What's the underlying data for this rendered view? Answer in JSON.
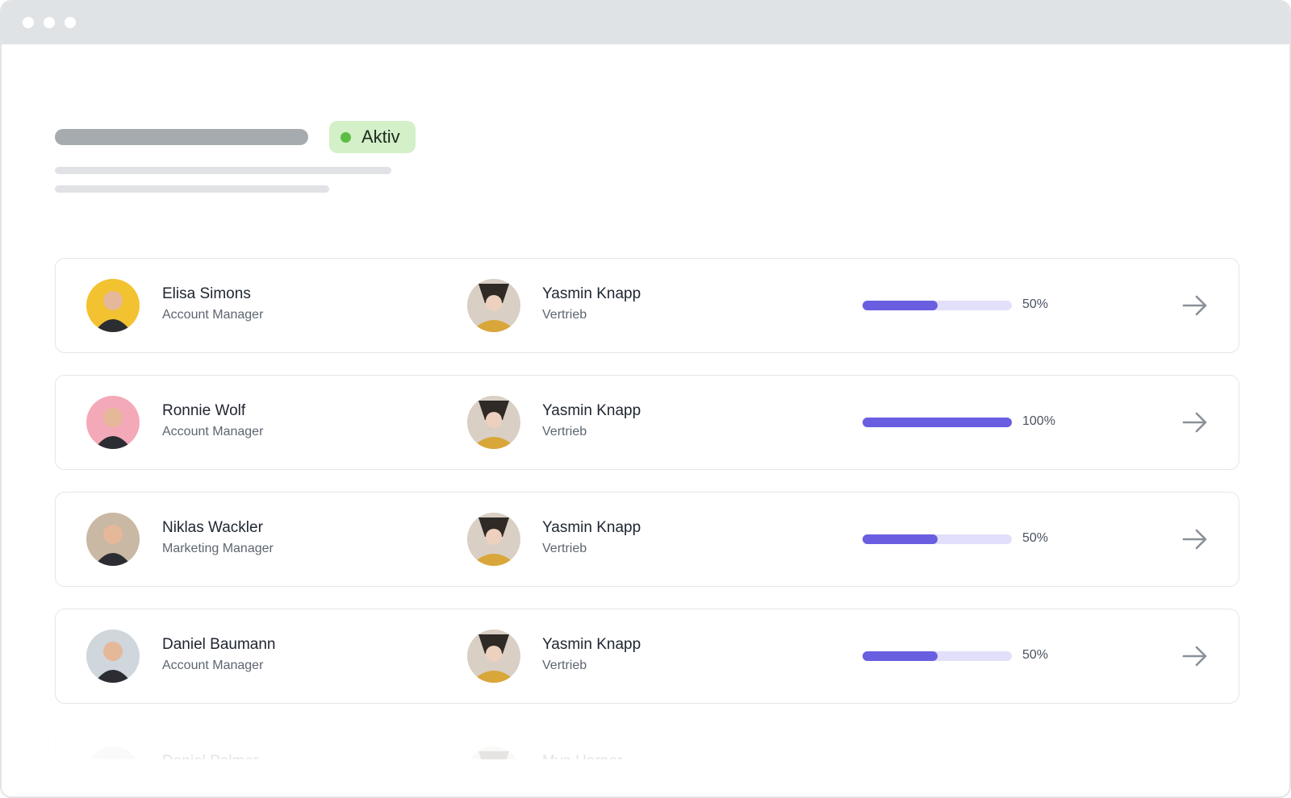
{
  "status_badge": {
    "label": "Aktiv",
    "dot_color": "#5dbd45",
    "bg_color": "#d3f0c9"
  },
  "accent_color": "#6a5ee0",
  "rows": [
    {
      "person": {
        "name": "Elisa Simons",
        "role": "Account Manager",
        "avatar_bg": "#f2c230"
      },
      "contact": {
        "name": "Yasmin Knapp",
        "role": "Vertrieb"
      },
      "progress": 50,
      "progress_label": "50%"
    },
    {
      "person": {
        "name": "Ronnie Wolf",
        "role": "Account Manager",
        "avatar_bg": "#f4a9b8"
      },
      "contact": {
        "name": "Yasmin Knapp",
        "role": "Vertrieb"
      },
      "progress": 100,
      "progress_label": "100%"
    },
    {
      "person": {
        "name": "Niklas Wackler",
        "role": "Marketing Manager",
        "avatar_bg": "#c9b8a3"
      },
      "contact": {
        "name": "Yasmin Knapp",
        "role": "Vertrieb"
      },
      "progress": 50,
      "progress_label": "50%"
    },
    {
      "person": {
        "name": "Daniel Baumann",
        "role": "Account Manager",
        "avatar_bg": "#cfd6dc"
      },
      "contact": {
        "name": "Yasmin Knapp",
        "role": "Vertrieb"
      },
      "progress": 50,
      "progress_label": "50%"
    },
    {
      "person": {
        "name": "Daniel Palmer",
        "role": "",
        "avatar_bg": "#d8dde2"
      },
      "contact": {
        "name": "Mya Harper",
        "role": ""
      }
    }
  ]
}
